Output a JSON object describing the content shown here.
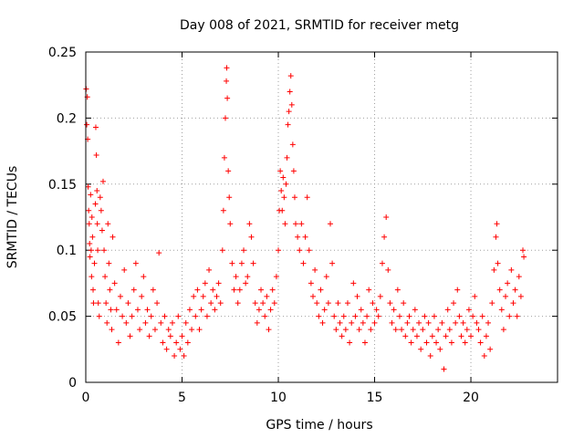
{
  "chart_data": {
    "type": "scatter",
    "title": "Day 008 of 2021, SRMTID for receiver metg",
    "xlabel": "GPS time / hours",
    "ylabel": "SRMTID / TECUs",
    "xlim": [
      0,
      24.5
    ],
    "ylim": [
      0,
      0.25
    ],
    "x_ticks": [
      0,
      5,
      10,
      15,
      20
    ],
    "x_tick_labels": [
      "0",
      "5",
      "10",
      "15",
      "20"
    ],
    "y_ticks": [
      0,
      0.05,
      0.1,
      0.15,
      0.2,
      0.25
    ],
    "y_tick_labels": [
      "0",
      "0.05",
      "0.1",
      "0.15",
      "0.2",
      "0.25"
    ],
    "grid": true,
    "marker": "plus",
    "series": [
      {
        "name": "SRMTID",
        "color": "#ff0000",
        "values": [
          [
            0.02,
            0.222
          ],
          [
            0.05,
            0.195
          ],
          [
            0.08,
            0.216
          ],
          [
            0.1,
            0.184
          ],
          [
            0.12,
            0.148
          ],
          [
            0.15,
            0.13
          ],
          [
            0.18,
            0.12
          ],
          [
            0.2,
            0.105
          ],
          [
            0.22,
            0.095
          ],
          [
            0.25,
            0.142
          ],
          [
            0.28,
            0.1
          ],
          [
            0.3,
            0.08
          ],
          [
            0.32,
            0.125
          ],
          [
            0.35,
            0.11
          ],
          [
            0.38,
            0.07
          ],
          [
            0.4,
            0.06
          ],
          [
            0.45,
            0.09
          ],
          [
            0.5,
            0.135
          ],
          [
            0.52,
            0.193
          ],
          [
            0.55,
            0.172
          ],
          [
            0.58,
            0.145
          ],
          [
            0.6,
            0.12
          ],
          [
            0.62,
            0.1
          ],
          [
            0.65,
            0.06
          ],
          [
            0.7,
            0.05
          ],
          [
            0.75,
            0.14
          ],
          [
            0.8,
            0.13
          ],
          [
            0.85,
            0.115
          ],
          [
            0.9,
            0.152
          ],
          [
            0.95,
            0.1
          ],
          [
            1.0,
            0.08
          ],
          [
            1.05,
            0.06
          ],
          [
            1.1,
            0.045
          ],
          [
            1.15,
            0.12
          ],
          [
            1.2,
            0.09
          ],
          [
            1.25,
            0.07
          ],
          [
            1.3,
            0.055
          ],
          [
            1.35,
            0.04
          ],
          [
            1.4,
            0.11
          ],
          [
            1.5,
            0.075
          ],
          [
            1.6,
            0.055
          ],
          [
            1.7,
            0.03
          ],
          [
            1.8,
            0.065
          ],
          [
            1.9,
            0.05
          ],
          [
            2.0,
            0.085
          ],
          [
            2.1,
            0.045
          ],
          [
            2.2,
            0.06
          ],
          [
            2.3,
            0.035
          ],
          [
            2.4,
            0.05
          ],
          [
            2.5,
            0.07
          ],
          [
            2.6,
            0.09
          ],
          [
            2.7,
            0.055
          ],
          [
            2.8,
            0.04
          ],
          [
            2.9,
            0.065
          ],
          [
            3.0,
            0.08
          ],
          [
            3.1,
            0.045
          ],
          [
            3.2,
            0.055
          ],
          [
            3.3,
            0.035
          ],
          [
            3.4,
            0.05
          ],
          [
            3.5,
            0.07
          ],
          [
            3.6,
            0.04
          ],
          [
            3.7,
            0.06
          ],
          [
            3.8,
            0.098
          ],
          [
            3.9,
            0.045
          ],
          [
            4.0,
            0.03
          ],
          [
            4.1,
            0.05
          ],
          [
            4.2,
            0.025
          ],
          [
            4.3,
            0.04
          ],
          [
            4.4,
            0.035
          ],
          [
            4.5,
            0.045
          ],
          [
            4.6,
            0.02
          ],
          [
            4.7,
            0.03
          ],
          [
            4.8,
            0.05
          ],
          [
            4.9,
            0.025
          ],
          [
            5.0,
            0.035
          ],
          [
            5.1,
            0.02
          ],
          [
            5.2,
            0.045
          ],
          [
            5.3,
            0.03
          ],
          [
            5.4,
            0.055
          ],
          [
            5.5,
            0.04
          ],
          [
            5.6,
            0.065
          ],
          [
            5.7,
            0.05
          ],
          [
            5.8,
            0.07
          ],
          [
            5.9,
            0.04
          ],
          [
            6.0,
            0.055
          ],
          [
            6.1,
            0.065
          ],
          [
            6.2,
            0.075
          ],
          [
            6.3,
            0.05
          ],
          [
            6.4,
            0.085
          ],
          [
            6.5,
            0.06
          ],
          [
            6.6,
            0.07
          ],
          [
            6.7,
            0.055
          ],
          [
            6.8,
            0.065
          ],
          [
            6.9,
            0.075
          ],
          [
            7.0,
            0.06
          ],
          [
            7.1,
            0.1
          ],
          [
            7.15,
            0.13
          ],
          [
            7.2,
            0.17
          ],
          [
            7.25,
            0.2
          ],
          [
            7.3,
            0.228
          ],
          [
            7.32,
            0.238
          ],
          [
            7.35,
            0.215
          ],
          [
            7.4,
            0.16
          ],
          [
            7.45,
            0.14
          ],
          [
            7.5,
            0.12
          ],
          [
            7.6,
            0.09
          ],
          [
            7.7,
            0.07
          ],
          [
            7.8,
            0.08
          ],
          [
            7.9,
            0.06
          ],
          [
            8.0,
            0.07
          ],
          [
            8.1,
            0.09
          ],
          [
            8.2,
            0.1
          ],
          [
            8.3,
            0.075
          ],
          [
            8.4,
            0.08
          ],
          [
            8.5,
            0.12
          ],
          [
            8.6,
            0.11
          ],
          [
            8.7,
            0.09
          ],
          [
            8.8,
            0.06
          ],
          [
            8.9,
            0.045
          ],
          [
            9.0,
            0.055
          ],
          [
            9.1,
            0.07
          ],
          [
            9.2,
            0.06
          ],
          [
            9.3,
            0.05
          ],
          [
            9.4,
            0.065
          ],
          [
            9.5,
            0.04
          ],
          [
            9.6,
            0.055
          ],
          [
            9.7,
            0.07
          ],
          [
            9.8,
            0.06
          ],
          [
            9.9,
            0.08
          ],
          [
            10.0,
            0.1
          ],
          [
            10.05,
            0.13
          ],
          [
            10.1,
            0.16
          ],
          [
            10.15,
            0.145
          ],
          [
            10.2,
            0.13
          ],
          [
            10.25,
            0.155
          ],
          [
            10.3,
            0.14
          ],
          [
            10.35,
            0.12
          ],
          [
            10.4,
            0.15
          ],
          [
            10.45,
            0.17
          ],
          [
            10.5,
            0.195
          ],
          [
            10.55,
            0.205
          ],
          [
            10.6,
            0.22
          ],
          [
            10.65,
            0.232
          ],
          [
            10.7,
            0.21
          ],
          [
            10.75,
            0.18
          ],
          [
            10.8,
            0.16
          ],
          [
            10.85,
            0.14
          ],
          [
            10.9,
            0.12
          ],
          [
            11.0,
            0.11
          ],
          [
            11.1,
            0.1
          ],
          [
            11.2,
            0.12
          ],
          [
            11.3,
            0.09
          ],
          [
            11.4,
            0.11
          ],
          [
            11.5,
            0.14
          ],
          [
            11.6,
            0.1
          ],
          [
            11.7,
            0.075
          ],
          [
            11.8,
            0.065
          ],
          [
            11.9,
            0.085
          ],
          [
            12.0,
            0.06
          ],
          [
            12.1,
            0.05
          ],
          [
            12.2,
            0.07
          ],
          [
            12.3,
            0.045
          ],
          [
            12.4,
            0.055
          ],
          [
            12.5,
            0.08
          ],
          [
            12.6,
            0.06
          ],
          [
            12.7,
            0.12
          ],
          [
            12.8,
            0.09
          ],
          [
            12.9,
            0.05
          ],
          [
            13.0,
            0.04
          ],
          [
            13.1,
            0.06
          ],
          [
            13.2,
            0.045
          ],
          [
            13.3,
            0.035
          ],
          [
            13.4,
            0.05
          ],
          [
            13.5,
            0.04
          ],
          [
            13.6,
            0.06
          ],
          [
            13.7,
            0.03
          ],
          [
            13.8,
            0.045
          ],
          [
            13.9,
            0.075
          ],
          [
            14.0,
            0.05
          ],
          [
            14.1,
            0.065
          ],
          [
            14.2,
            0.04
          ],
          [
            14.3,
            0.055
          ],
          [
            14.4,
            0.045
          ],
          [
            14.5,
            0.03
          ],
          [
            14.6,
            0.05
          ],
          [
            14.7,
            0.07
          ],
          [
            14.8,
            0.04
          ],
          [
            14.9,
            0.06
          ],
          [
            15.0,
            0.045
          ],
          [
            15.1,
            0.055
          ],
          [
            15.2,
            0.05
          ],
          [
            15.3,
            0.065
          ],
          [
            15.4,
            0.09
          ],
          [
            15.5,
            0.11
          ],
          [
            15.6,
            0.125
          ],
          [
            15.7,
            0.085
          ],
          [
            15.8,
            0.06
          ],
          [
            15.9,
            0.045
          ],
          [
            16.0,
            0.055
          ],
          [
            16.1,
            0.04
          ],
          [
            16.2,
            0.07
          ],
          [
            16.3,
            0.05
          ],
          [
            16.4,
            0.04
          ],
          [
            16.5,
            0.06
          ],
          [
            16.6,
            0.035
          ],
          [
            16.7,
            0.045
          ],
          [
            16.8,
            0.05
          ],
          [
            16.9,
            0.03
          ],
          [
            17.0,
            0.04
          ],
          [
            17.1,
            0.055
          ],
          [
            17.2,
            0.035
          ],
          [
            17.3,
            0.045
          ],
          [
            17.4,
            0.025
          ],
          [
            17.5,
            0.04
          ],
          [
            17.6,
            0.05
          ],
          [
            17.7,
            0.03
          ],
          [
            17.8,
            0.045
          ],
          [
            17.9,
            0.02
          ],
          [
            18.0,
            0.035
          ],
          [
            18.1,
            0.05
          ],
          [
            18.2,
            0.03
          ],
          [
            18.3,
            0.04
          ],
          [
            18.4,
            0.025
          ],
          [
            18.5,
            0.045
          ],
          [
            18.6,
            0.01
          ],
          [
            18.7,
            0.035
          ],
          [
            18.8,
            0.055
          ],
          [
            18.9,
            0.04
          ],
          [
            19.0,
            0.03
          ],
          [
            19.1,
            0.06
          ],
          [
            19.2,
            0.045
          ],
          [
            19.3,
            0.07
          ],
          [
            19.4,
            0.05
          ],
          [
            19.5,
            0.035
          ],
          [
            19.6,
            0.045
          ],
          [
            19.7,
            0.03
          ],
          [
            19.8,
            0.04
          ],
          [
            19.9,
            0.055
          ],
          [
            20.0,
            0.035
          ],
          [
            20.1,
            0.05
          ],
          [
            20.2,
            0.065
          ],
          [
            20.3,
            0.045
          ],
          [
            20.4,
            0.04
          ],
          [
            20.5,
            0.03
          ],
          [
            20.6,
            0.05
          ],
          [
            20.7,
            0.02
          ],
          [
            20.8,
            0.035
          ],
          [
            20.9,
            0.045
          ],
          [
            21.0,
            0.025
          ],
          [
            21.1,
            0.06
          ],
          [
            21.2,
            0.085
          ],
          [
            21.3,
            0.11
          ],
          [
            21.35,
            0.12
          ],
          [
            21.4,
            0.09
          ],
          [
            21.5,
            0.07
          ],
          [
            21.6,
            0.055
          ],
          [
            21.7,
            0.04
          ],
          [
            21.8,
            0.065
          ],
          [
            21.9,
            0.075
          ],
          [
            22.0,
            0.05
          ],
          [
            22.1,
            0.085
          ],
          [
            22.2,
            0.06
          ],
          [
            22.3,
            0.07
          ],
          [
            22.4,
            0.05
          ],
          [
            22.5,
            0.08
          ],
          [
            22.6,
            0.065
          ],
          [
            22.7,
            0.1
          ],
          [
            22.75,
            0.095
          ]
        ]
      }
    ]
  }
}
